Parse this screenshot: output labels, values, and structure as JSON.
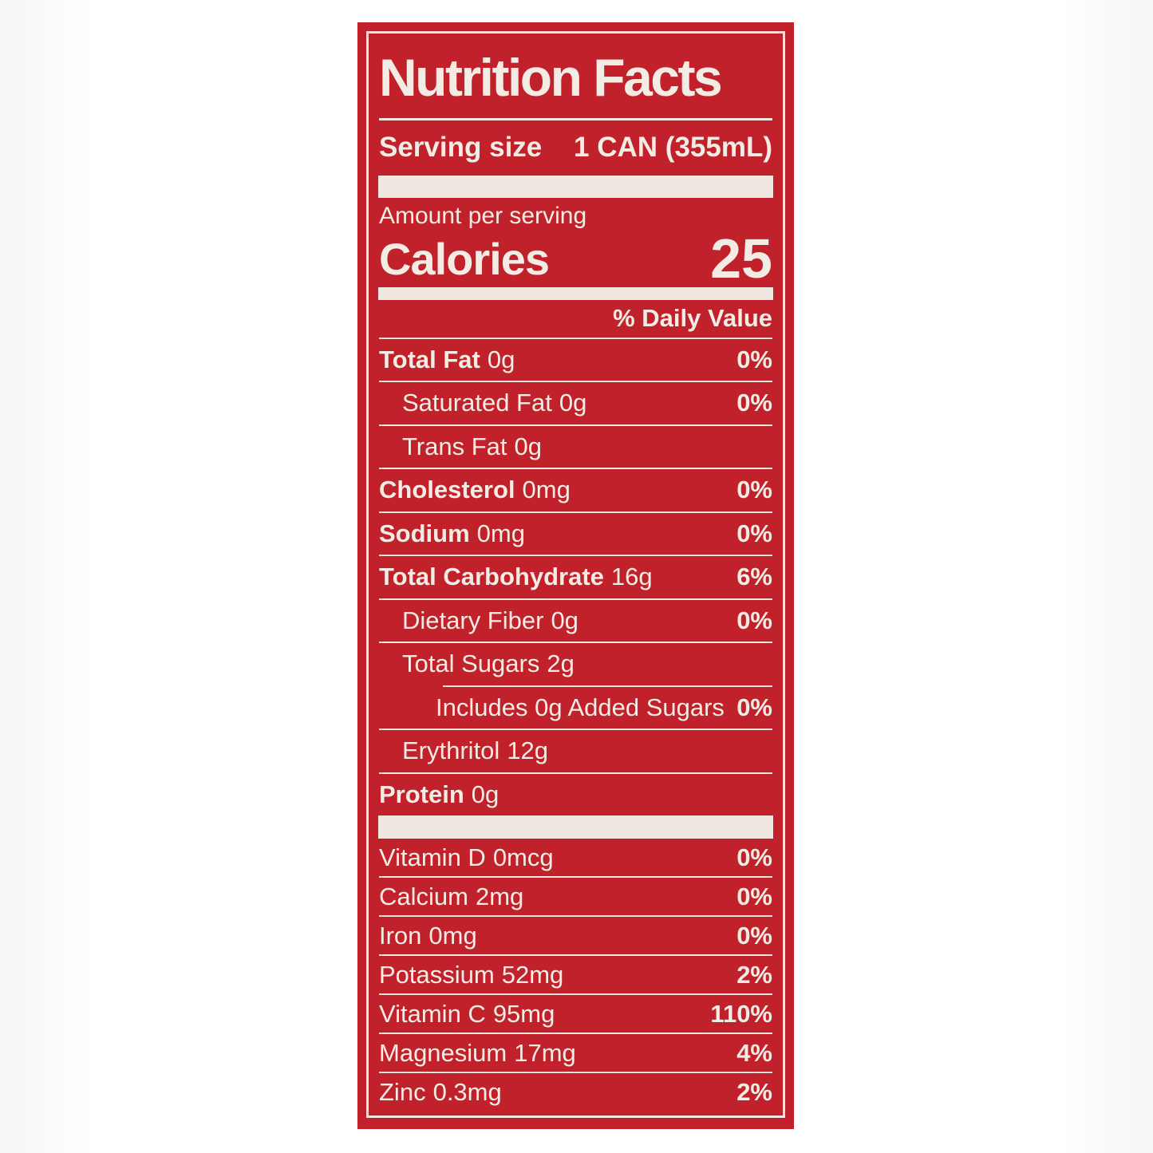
{
  "label": {
    "title": "Nutrition Facts",
    "serving": {
      "label": "Serving size",
      "value": "1 CAN (355mL)"
    },
    "amount_per_serving": "Amount per serving",
    "calories": {
      "label": "Calories",
      "value": "25"
    },
    "daily_value_header": "% Daily Value",
    "rows": [
      {
        "name": "Total Fat",
        "amount": "0g",
        "dv": "0%"
      },
      {
        "name": "Saturated Fat",
        "amount": "0g",
        "dv": "0%"
      },
      {
        "name": "Trans Fat",
        "amount": "0g",
        "dv": ""
      },
      {
        "name": "Cholesterol",
        "amount": "0mg",
        "dv": "0%"
      },
      {
        "name": "Sodium",
        "amount": "0mg",
        "dv": "0%"
      },
      {
        "name": "Total Carbohydrate",
        "amount": "16g",
        "dv": "6%"
      },
      {
        "name": "Dietary Fiber",
        "amount": "0g",
        "dv": "0%"
      },
      {
        "name": "Total Sugars",
        "amount": "2g",
        "dv": ""
      },
      {
        "name": "Includes 0g Added Sugars",
        "amount": "",
        "dv": "0%"
      },
      {
        "name": "Erythritol",
        "amount": "12g",
        "dv": ""
      },
      {
        "name": "Protein",
        "amount": "0g",
        "dv": ""
      }
    ],
    "micronutrients": [
      {
        "name": "Vitamin D",
        "amount": "0mcg",
        "dv": "0%"
      },
      {
        "name": "Calcium",
        "amount": "2mg",
        "dv": "0%"
      },
      {
        "name": "Iron",
        "amount": "0mg",
        "dv": "0%"
      },
      {
        "name": "Potassium",
        "amount": "52mg",
        "dv": "2%"
      },
      {
        "name": "Vitamin C",
        "amount": "95mg",
        "dv": "110%"
      },
      {
        "name": "Magnesium",
        "amount": "17mg",
        "dv": "4%"
      },
      {
        "name": "Zinc",
        "amount": "0.3mg",
        "dv": "2%"
      }
    ],
    "colors": {
      "panel_red": "#c1212a",
      "line_white": "#efe7e0"
    }
  }
}
